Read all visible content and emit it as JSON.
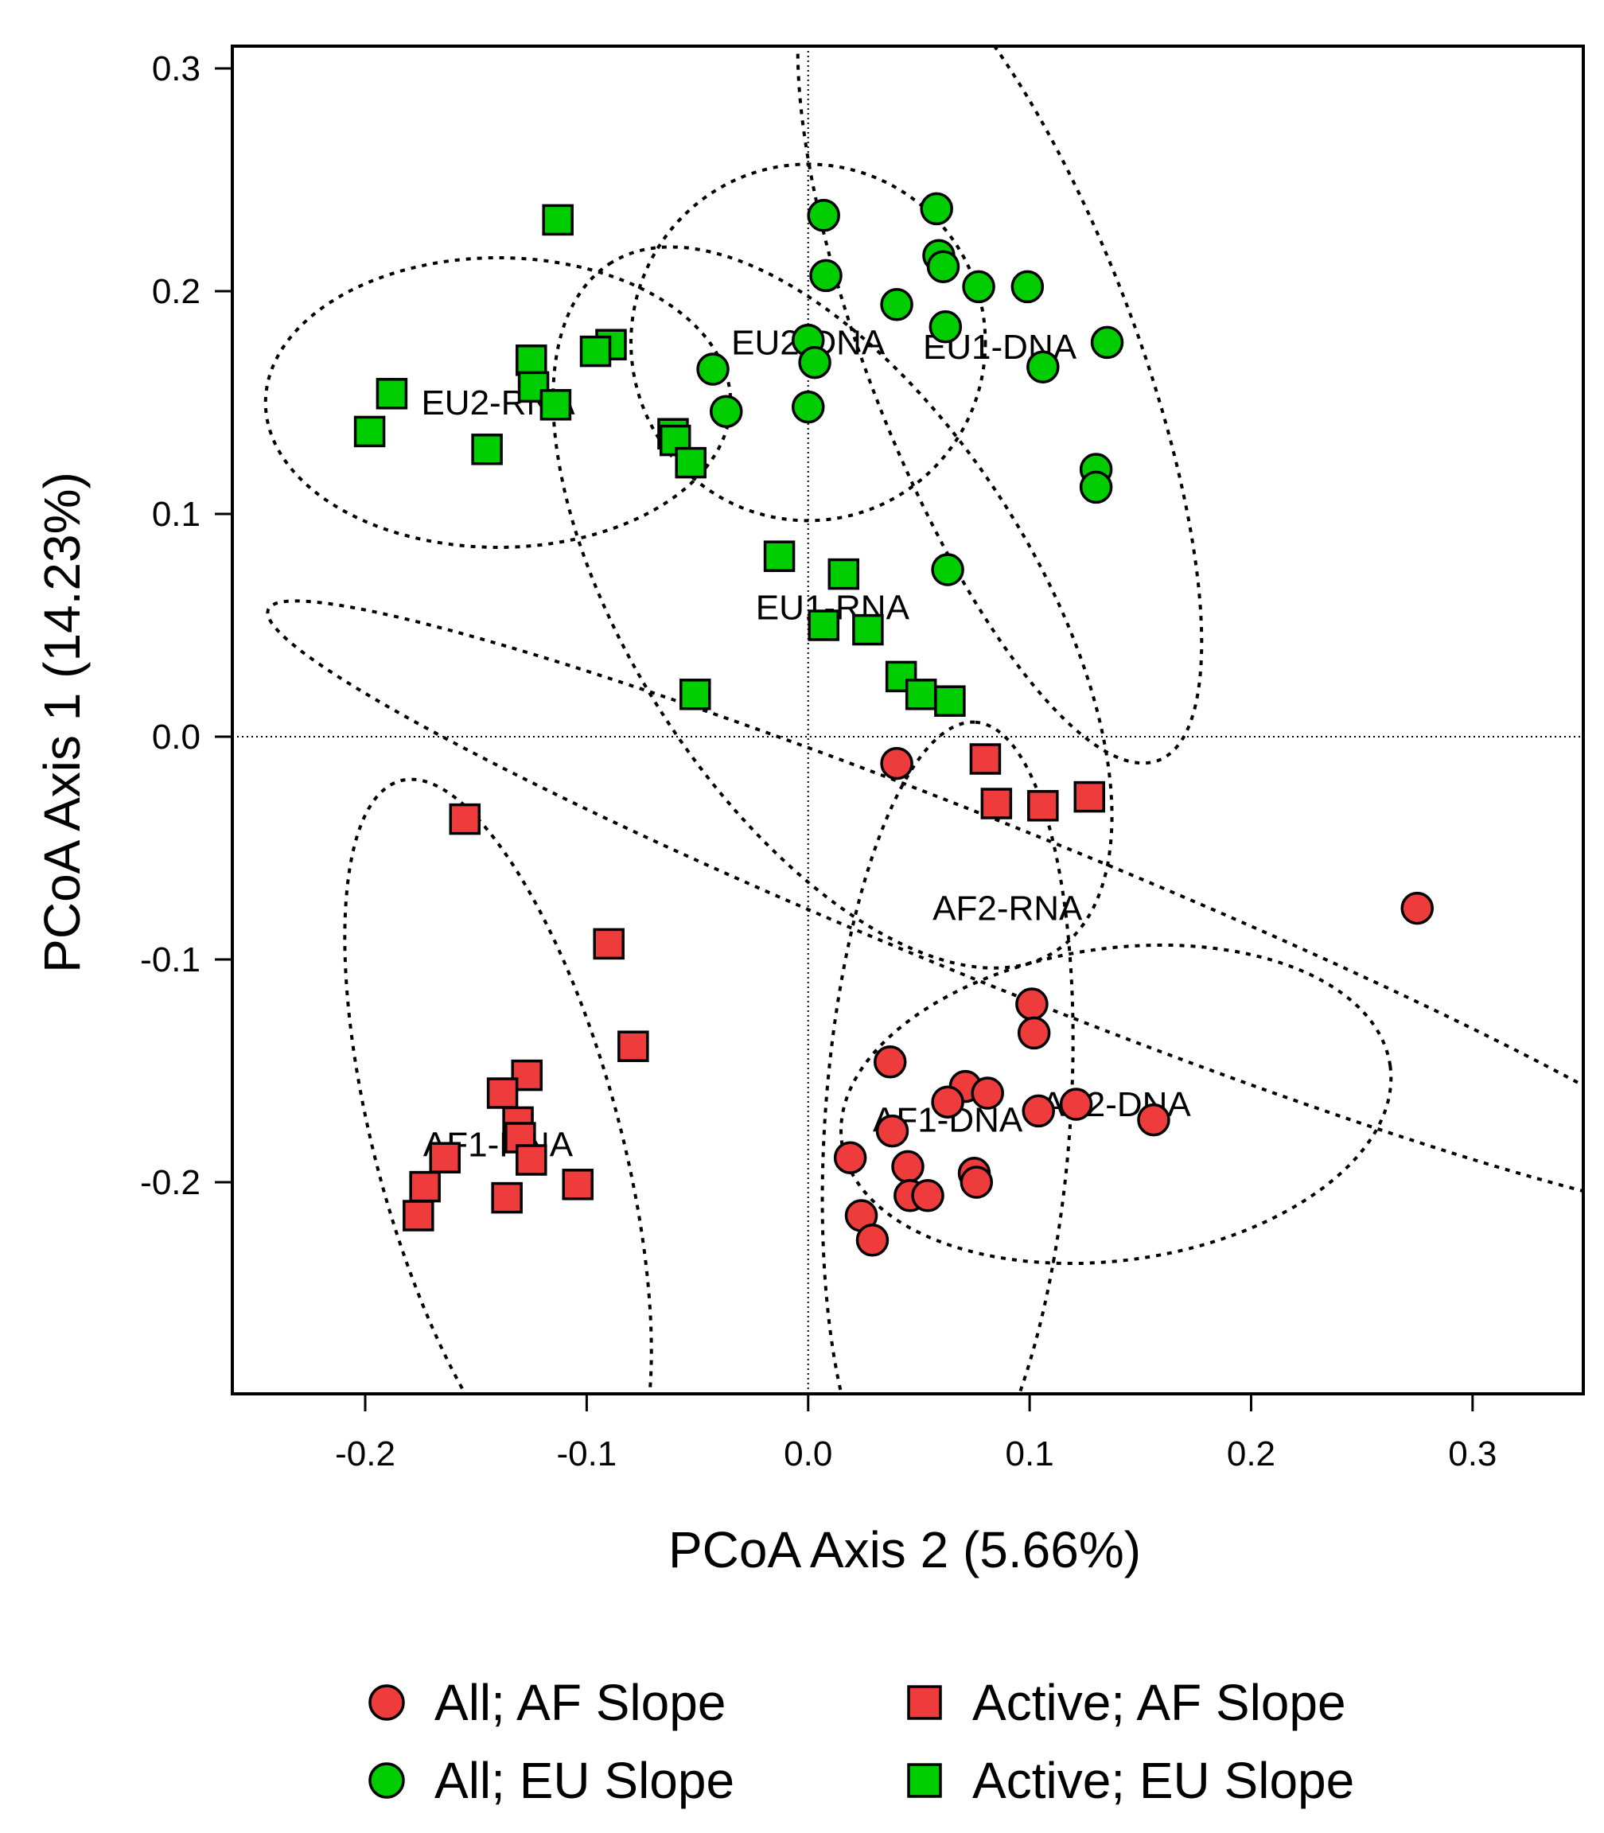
{
  "chart_data": {
    "type": "scatter",
    "xlabel": "PCoA Axis 2 (5.66%)",
    "ylabel": "PCoA Axis 1 (14.23%)",
    "xlim": [
      -0.26,
      0.35
    ],
    "ylim": [
      -0.295,
      0.31
    ],
    "x_ticks": [
      "-0.2",
      "-0.1",
      "0.0",
      "0.1",
      "0.2",
      "0.3"
    ],
    "x_tick_values": [
      -0.2,
      -0.1,
      0.0,
      0.1,
      0.2,
      0.3
    ],
    "y_ticks": [
      "0.3",
      "0.2",
      "0.1",
      "0.0",
      "-0.1",
      "-0.2"
    ],
    "y_tick_values": [
      0.3,
      0.2,
      0.1,
      0.0,
      -0.1,
      -0.2
    ],
    "reference_lines": {
      "x": 0,
      "y": 0,
      "style": "dotted"
    },
    "grid": false,
    "legend_position": "bottom",
    "colors": {
      "AF": "#EE3B3B",
      "EU": "#00CD00"
    },
    "series": [
      {
        "name": "All; AF Slope",
        "marker": "circle",
        "color": "#EE3B3B",
        "points": [
          [
            0.04,
            -0.012
          ],
          [
            0.275,
            -0.077
          ],
          [
            0.101,
            -0.12
          ],
          [
            0.102,
            -0.133
          ],
          [
            0.037,
            -0.146
          ],
          [
            0.071,
            -0.157
          ],
          [
            0.081,
            -0.16
          ],
          [
            0.063,
            -0.164
          ],
          [
            0.104,
            -0.168
          ],
          [
            0.121,
            -0.165
          ],
          [
            0.156,
            -0.172
          ],
          [
            0.038,
            -0.177
          ],
          [
            0.019,
            -0.189
          ],
          [
            0.045,
            -0.193
          ],
          [
            0.075,
            -0.196
          ],
          [
            0.076,
            -0.2
          ],
          [
            0.046,
            -0.206
          ],
          [
            0.054,
            -0.206
          ],
          [
            0.024,
            -0.215
          ],
          [
            0.029,
            -0.226
          ]
        ]
      },
      {
        "name": "Active; AF Slope",
        "marker": "square",
        "color": "#EE3B3B",
        "points": [
          [
            0.08,
            -0.01
          ],
          [
            0.127,
            -0.027
          ],
          [
            0.085,
            -0.03
          ],
          [
            0.106,
            -0.031
          ],
          [
            -0.155,
            -0.037
          ],
          [
            -0.09,
            -0.093
          ],
          [
            -0.079,
            -0.139
          ],
          [
            -0.127,
            -0.152
          ],
          [
            -0.138,
            -0.16
          ],
          [
            -0.131,
            -0.173
          ],
          [
            -0.13,
            -0.18
          ],
          [
            -0.125,
            -0.19
          ],
          [
            -0.164,
            -0.189
          ],
          [
            -0.173,
            -0.202
          ],
          [
            -0.136,
            -0.207
          ],
          [
            -0.104,
            -0.201
          ],
          [
            -0.176,
            -0.215
          ]
        ]
      },
      {
        "name": "All; EU Slope",
        "marker": "circle",
        "color": "#00CD00",
        "points": [
          [
            0.058,
            0.237
          ],
          [
            0.007,
            0.234
          ],
          [
            0.059,
            0.216
          ],
          [
            0.061,
            0.211
          ],
          [
            0.077,
            0.202
          ],
          [
            0.099,
            0.202
          ],
          [
            0.008,
            0.207
          ],
          [
            0.04,
            0.194
          ],
          [
            0.062,
            0.184
          ],
          [
            0.0,
            0.178
          ],
          [
            0.003,
            0.168
          ],
          [
            0.135,
            0.177
          ],
          [
            0.106,
            0.166
          ],
          [
            -0.043,
            0.165
          ],
          [
            -0.037,
            0.146
          ],
          [
            0.0,
            0.148
          ],
          [
            0.13,
            0.12
          ],
          [
            0.13,
            0.112
          ],
          [
            0.063,
            0.075
          ]
        ]
      },
      {
        "name": "Active; EU Slope",
        "marker": "square",
        "color": "#00CD00",
        "points": [
          [
            -0.113,
            0.232
          ],
          [
            -0.089,
            0.176
          ],
          [
            -0.096,
            0.173
          ],
          [
            -0.125,
            0.169
          ],
          [
            -0.124,
            0.157
          ],
          [
            -0.114,
            0.149
          ],
          [
            -0.188,
            0.154
          ],
          [
            -0.198,
            0.137
          ],
          [
            -0.145,
            0.129
          ],
          [
            -0.061,
            0.136
          ],
          [
            -0.06,
            0.133
          ],
          [
            -0.053,
            0.123
          ],
          [
            -0.013,
            0.081
          ],
          [
            0.016,
            0.073
          ],
          [
            0.007,
            0.05
          ],
          [
            0.027,
            0.048
          ],
          [
            0.042,
            0.027
          ],
          [
            -0.051,
            0.019
          ],
          [
            0.051,
            0.019
          ],
          [
            0.064,
            0.016
          ]
        ]
      }
    ],
    "ellipses": [
      {
        "label": "EU2-DNA",
        "center": [
          0.0,
          0.177
        ],
        "semi_axes": [
          0.08,
          0.08
        ],
        "angle_deg": 0
      },
      {
        "label": "EU1-DNA",
        "center": [
          0.0865,
          0.175
        ],
        "semi_axes": [
          0.2,
          0.06
        ],
        "angle_deg": -111
      },
      {
        "label": "EU2-RNA",
        "center": [
          -0.14,
          0.15
        ],
        "semi_axes": [
          0.105,
          0.065
        ],
        "angle_deg": 0
      },
      {
        "label": "EU1-RNA",
        "center": [
          0.011,
          0.058
        ],
        "semi_axes": [
          0.185,
          0.09
        ],
        "angle_deg": -123
      },
      {
        "label": "AF2-RNA",
        "center": [
          0.09,
          -0.077
        ],
        "semi_axes": [
          0.36,
          0.035
        ],
        "angle_deg": 22
      },
      {
        "label": "AF1-RNA",
        "center": [
          -0.14,
          -0.183
        ],
        "semi_axes": [
          0.17,
          0.055
        ],
        "angle_deg": -105
      },
      {
        "label": "AF1-DNA",
        "center": [
          0.063,
          -0.172
        ],
        "semi_axes": [
          0.18,
          0.055
        ],
        "angle_deg": -86
      },
      {
        "label": "AF2-DNA",
        "center": [
          0.139,
          -0.165
        ],
        "semi_axes": [
          0.125,
          0.07
        ],
        "angle_deg": -8
      }
    ]
  }
}
